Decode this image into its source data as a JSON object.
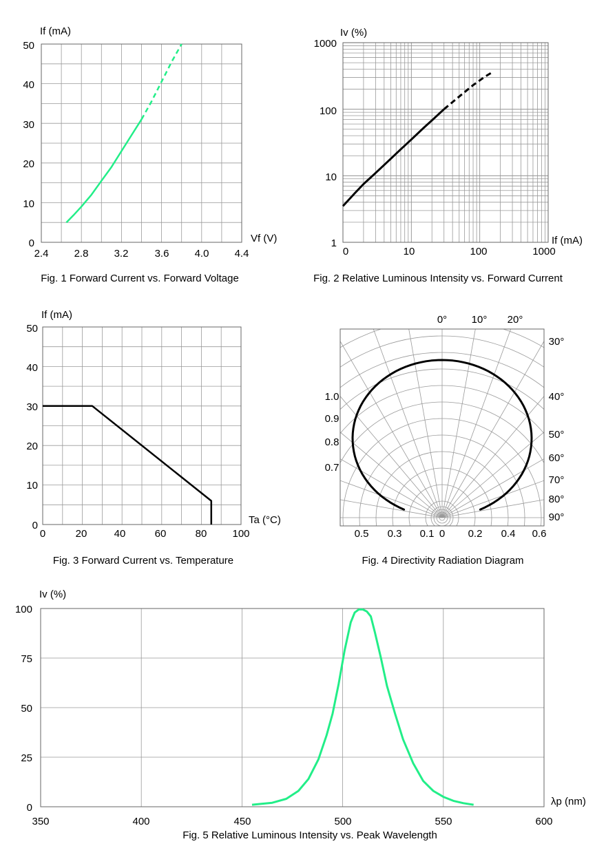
{
  "chart_data": [
    {
      "id": "fig1",
      "type": "line",
      "caption": "Fig. 1 Forward Current vs. Forward Voltage",
      "xlabel": "Vf (V)",
      "ylabel": "If (mA)",
      "xlim": [
        2.4,
        4.4
      ],
      "ylim": [
        0,
        50
      ],
      "xticks": [
        "2.4",
        "2.8",
        "3.2",
        "3.6",
        "4.0",
        "4.4"
      ],
      "yticks": [
        "0",
        "10",
        "20",
        "30",
        "40",
        "50"
      ],
      "grid": true,
      "series": [
        {
          "name": "If-Vf (solid)",
          "style": "solid",
          "color": "#22ee88",
          "x": [
            2.65,
            2.72,
            2.8,
            2.9,
            3.0,
            3.1,
            3.2,
            3.3,
            3.4
          ],
          "y": [
            5,
            6.8,
            9,
            12,
            15.5,
            19,
            23,
            27,
            31
          ]
        },
        {
          "name": "If-Vf (dashed)",
          "style": "dashed",
          "color": "#22ee88",
          "x": [
            3.4,
            3.5,
            3.6,
            3.7,
            3.8
          ],
          "y": [
            31,
            35.5,
            40.5,
            45.5,
            50
          ]
        }
      ]
    },
    {
      "id": "fig2",
      "type": "line",
      "caption": "Fig. 2 Relative Luminous Intensity vs. Forward Current",
      "xlabel": "If (mA)",
      "ylabel": "Iv (%)",
      "xscale": "log",
      "yscale": "log",
      "xlim": [
        1,
        1000
      ],
      "ylim": [
        1,
        1000
      ],
      "xticks": [
        "0",
        "10",
        "100",
        "1000"
      ],
      "yticks": [
        "1",
        "10",
        "100",
        "1000"
      ],
      "grid": true,
      "series": [
        {
          "name": "Iv-If (solid)",
          "style": "solid",
          "color": "#000000",
          "x": [
            1,
            1.5,
            2,
            3,
            5,
            7,
            10,
            15,
            20,
            30
          ],
          "y": [
            3.5,
            5.5,
            7.5,
            11,
            18,
            25,
            35,
            52,
            68,
            100
          ]
        },
        {
          "name": "Iv-If (dashed)",
          "style": "dashed",
          "color": "#000000",
          "x": [
            30,
            50,
            80,
            120,
            160
          ],
          "y": [
            100,
            155,
            230,
            310,
            370
          ]
        }
      ]
    },
    {
      "id": "fig3",
      "type": "line",
      "caption": "Fig. 3 Forward Current vs. Temperature",
      "xlabel": "Ta (°C)",
      "ylabel": "If (mA)",
      "xlim": [
        0,
        100
      ],
      "ylim": [
        0,
        50
      ],
      "xticks": [
        "0",
        "20",
        "40",
        "60",
        "80",
        "100"
      ],
      "yticks": [
        "0",
        "10",
        "20",
        "30",
        "40",
        "50"
      ],
      "grid": true,
      "series": [
        {
          "name": "Derating",
          "style": "solid",
          "color": "#000000",
          "x": [
            0,
            25,
            85,
            85
          ],
          "y": [
            30,
            30,
            6,
            0
          ]
        }
      ]
    },
    {
      "id": "fig4",
      "type": "polar",
      "caption": "Fig. 4 Directivity Radiation Diagram",
      "angle_labels_top": [
        "0°",
        "10°",
        "20°"
      ],
      "angle_labels_right": [
        "30°",
        "40°",
        "50°",
        "60°",
        "70°",
        "80°",
        "90°"
      ],
      "radial_labels_left": [
        "1.0",
        "0.9",
        "0.8",
        "0.7"
      ],
      "bottom_labels": [
        "0.5",
        "0.3",
        "0.1",
        "0",
        "0.2",
        "0.4",
        "0.6"
      ],
      "series": [
        {
          "name": "Radiation pattern",
          "color": "#000000",
          "angles_deg": [
            0,
            10,
            20,
            30,
            40,
            50,
            60,
            70,
            80,
            85
          ],
          "relative_intensity": [
            1.0,
            0.99,
            0.97,
            0.94,
            0.9,
            0.84,
            0.74,
            0.58,
            0.36,
            0.22
          ]
        }
      ]
    },
    {
      "id": "fig5",
      "type": "line",
      "caption": "Fig. 5 Relative Luminous Intensity vs. Peak Wavelength",
      "xlabel": "λp (nm)",
      "ylabel": "Iv (%)",
      "xlim": [
        350,
        600
      ],
      "ylim": [
        0,
        100
      ],
      "xticks": [
        "350",
        "400",
        "450",
        "500",
        "550",
        "600"
      ],
      "yticks": [
        "0",
        "25",
        "50",
        "75",
        "100"
      ],
      "grid": true,
      "series": [
        {
          "name": "Spectrum",
          "style": "solid",
          "color": "#22ee88",
          "x": [
            455,
            465,
            472,
            478,
            483,
            488,
            492,
            495,
            498,
            501,
            504,
            506,
            508,
            510,
            512,
            514,
            516,
            519,
            522,
            526,
            530,
            535,
            540,
            545,
            550,
            555,
            560,
            565
          ],
          "y": [
            1,
            2,
            4,
            8,
            14,
            24,
            36,
            47,
            62,
            79,
            93,
            98,
            99.5,
            99.5,
            98.5,
            96,
            88,
            75,
            61,
            47,
            34,
            22,
            13,
            8,
            5,
            3,
            1.8,
            1
          ]
        }
      ]
    }
  ]
}
